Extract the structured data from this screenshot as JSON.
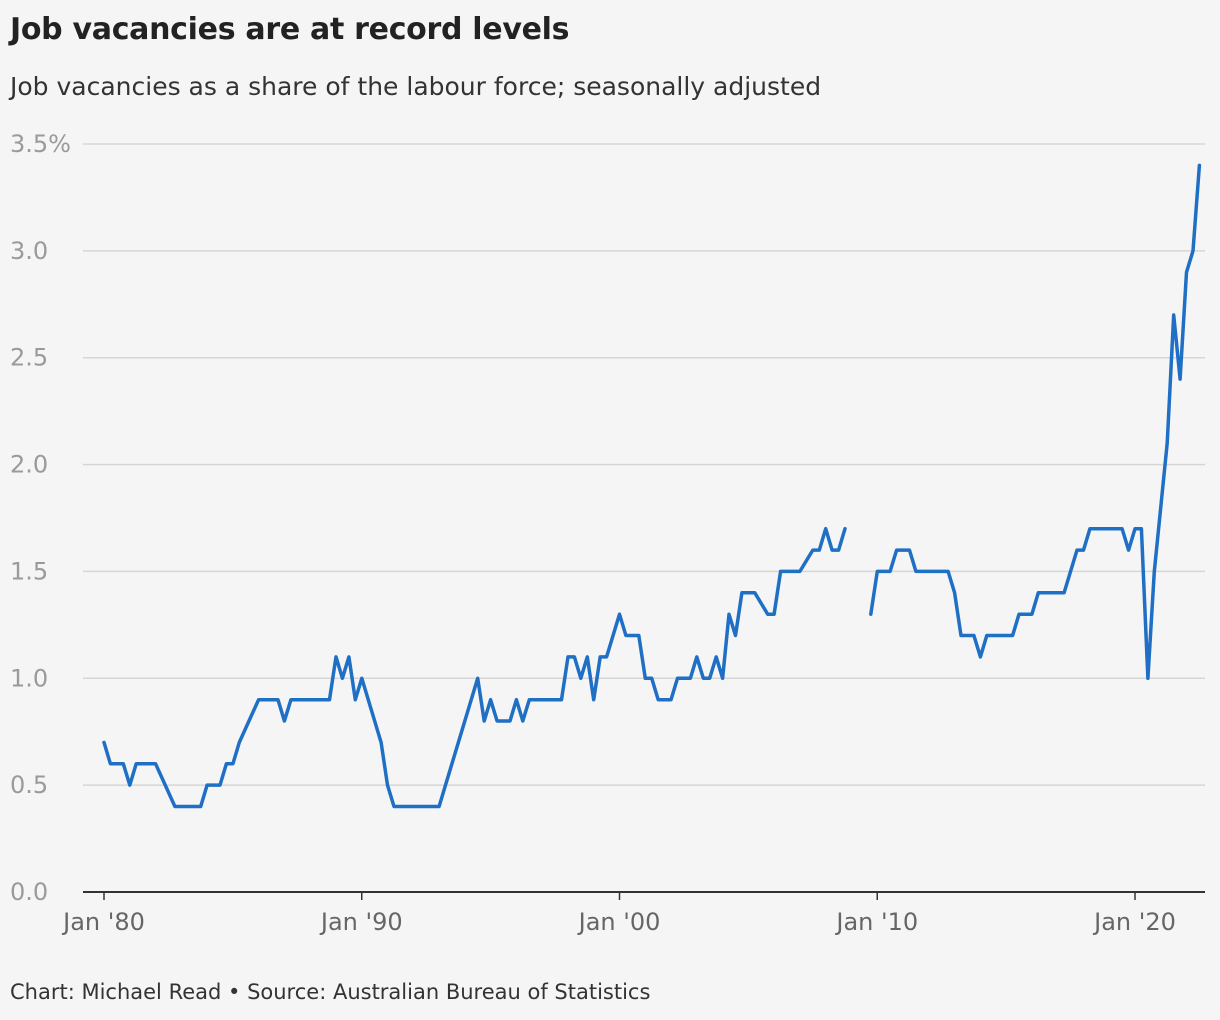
{
  "title": "Job vacancies are at record levels",
  "subtitle": "Job vacancies as a share of the labour force; seasonally adjusted",
  "footer": "Chart: Michael Read • Source: Australian Bureau of Statistics",
  "chart_data": {
    "type": "line",
    "title": "Job vacancies are at record levels",
    "subtitle": "Job vacancies as a share of the labour force; seasonally adjusted",
    "xlabel": "",
    "ylabel": "",
    "x_unit": "year (decimal)",
    "xlim": [
      1979.5,
      2023.0
    ],
    "ylim": [
      0,
      3.5
    ],
    "yticks": [
      0.0,
      0.5,
      1.0,
      1.5,
      2.0,
      2.5,
      3.0,
      3.5
    ],
    "ytick_labels": [
      "0.0",
      "0.5",
      "1.0",
      "1.5",
      "2.0",
      "2.5",
      "3.0",
      "3.5%"
    ],
    "xticks": [
      1980,
      1990,
      2000,
      2010,
      2020
    ],
    "xtick_labels": [
      "Jan '80",
      "Jan '90",
      "Jan '00",
      "Jan '10",
      "Jan '20"
    ],
    "grid": "horizontal",
    "legend": "none",
    "color": "#1f6fc5",
    "series": [
      {
        "segment": 1,
        "x": [
          1980.0,
          1980.25,
          1980.75,
          1981.0,
          1981.25,
          1981.75,
          1982.0,
          1982.75,
          1983.0,
          1983.75,
          1984.0,
          1984.5,
          1984.75,
          1985.0,
          1985.25,
          1986.0,
          1986.75,
          1987.0,
          1987.25,
          1988.0,
          1988.75,
          1989.0,
          1989.25,
          1989.5,
          1989.75,
          1990.0,
          1990.75,
          1991.0,
          1991.25,
          1992.0,
          1992.75,
          1993.0,
          1993.25,
          1994.5,
          1994.75,
          1995.0,
          1995.25,
          1995.75,
          1996.0,
          1996.25,
          1996.5,
          1997.0,
          1997.25,
          1997.75,
          1998.0,
          1998.25,
          1998.5,
          1998.75,
          1999.0,
          1999.25,
          1999.5,
          2000.0,
          2000.25,
          2000.75,
          2001.0,
          2001.25,
          2001.5,
          2002.0,
          2002.25,
          2002.75,
          2003.0,
          2003.25,
          2003.5,
          2003.75,
          2004.0,
          2004.25,
          2004.5,
          2004.75,
          2005.0,
          2005.25,
          2005.75,
          2006.0,
          2006.25,
          2006.75,
          2007.0,
          2007.5,
          2007.75,
          2008.0,
          2008.25,
          2008.5,
          2008.75
        ],
        "y": [
          0.7,
          0.6,
          0.6,
          0.5,
          0.6,
          0.6,
          0.6,
          0.4,
          0.4,
          0.4,
          0.5,
          0.5,
          0.6,
          0.6,
          0.7,
          0.9,
          0.9,
          0.8,
          0.9,
          0.9,
          0.9,
          1.1,
          1.0,
          1.1,
          0.9,
          1.0,
          0.7,
          0.5,
          0.4,
          0.4,
          0.4,
          0.4,
          0.5,
          1.0,
          0.8,
          0.9,
          0.8,
          0.8,
          0.9,
          0.8,
          0.9,
          0.9,
          0.9,
          0.9,
          1.1,
          1.1,
          1.0,
          1.1,
          0.9,
          1.1,
          1.1,
          1.3,
          1.2,
          1.2,
          1.0,
          1.0,
          0.9,
          0.9,
          1.0,
          1.0,
          1.1,
          1.0,
          1.0,
          1.1,
          1.0,
          1.3,
          1.2,
          1.4,
          1.4,
          1.4,
          1.3,
          1.3,
          1.5,
          1.5,
          1.5,
          1.6,
          1.6,
          1.7,
          1.6,
          1.6,
          1.7
        ]
      },
      {
        "segment": 2,
        "x": [
          2009.75,
          2010.0,
          2010.5,
          2010.75,
          2011.25,
          2011.5,
          2012.75,
          2013.0,
          2013.25,
          2013.75,
          2014.0,
          2014.25,
          2015.25,
          2015.5,
          2016.0,
          2016.25,
          2017.25,
          2017.75,
          2018.0,
          2018.25,
          2018.5,
          2019.5,
          2019.75,
          2020.0,
          2020.25,
          2020.5,
          2020.75,
          2021.25,
          2021.5,
          2021.75,
          2022.0,
          2022.25,
          2022.5
        ]
      }
    ]
  }
}
